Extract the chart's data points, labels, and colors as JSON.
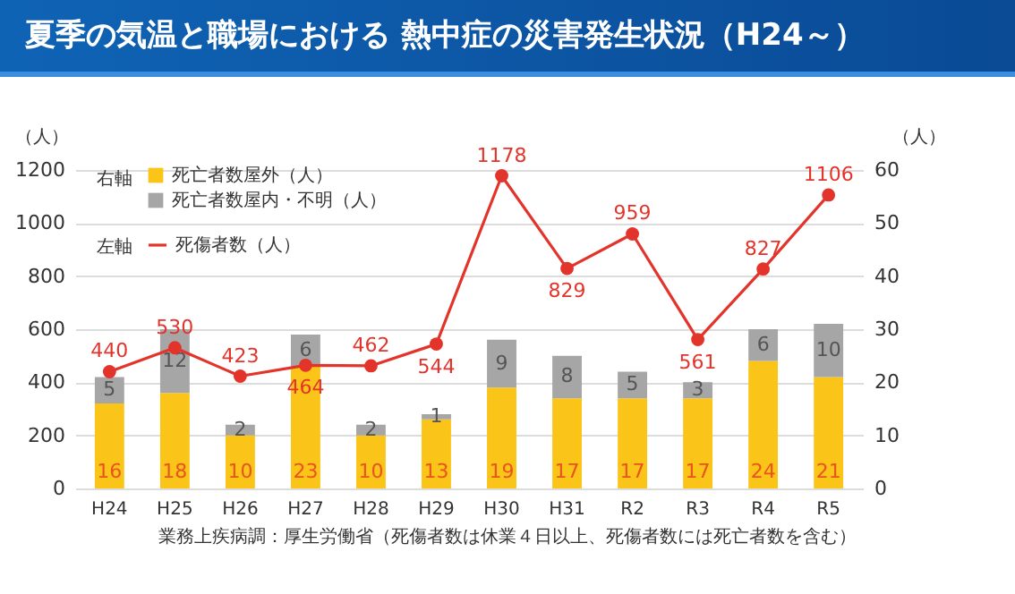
{
  "chart_data": {
    "type": "bar",
    "title": "夏季の気温と職場における 熱中症の災害発生状況（H24～）",
    "ylabel": "（人）",
    "y2label": "（人）",
    "annotations": [
      "右軸",
      "左軸",
      "業務上疾病調：厚生労働省（死傷者数は休業４日以上、死傷者数には死亡者数を含む）"
    ],
    "categories": [
      "H24",
      "H25",
      "H26",
      "H27",
      "H28",
      "H29",
      "H30",
      "H31",
      "R2",
      "R3",
      "R4",
      "R5"
    ],
    "stacked": true,
    "data_labels": true,
    "grid": "y",
    "legend": "top left",
    "marker": "circle",
    "ylim": [
      0,
      1200
    ],
    "yticks": [
      0,
      200,
      400,
      600,
      800,
      1000,
      1200
    ],
    "y2lim": [
      0,
      60
    ],
    "y2ticks": [
      0,
      10,
      20,
      30,
      40,
      50,
      60
    ],
    "series": [
      {
        "name": "死亡者数屋外（人）",
        "color": "#fbc419",
        "axis": "y2",
        "values": [
          16,
          18,
          10,
          23,
          10,
          13,
          19,
          17,
          17,
          17,
          24,
          21
        ]
      },
      {
        "name": "死亡者数屋内・不明（人）",
        "color": "#a6a6a6",
        "axis": "y2",
        "values": [
          5,
          12,
          2,
          6,
          2,
          1,
          9,
          8,
          5,
          3,
          6,
          10
        ]
      },
      {
        "name": "死傷者数（人）",
        "type": "line",
        "color": "#e3342b",
        "values": [
          440,
          530,
          423,
          464,
          462,
          544,
          1178,
          829,
          959,
          561,
          827,
          1106
        ]
      }
    ]
  }
}
